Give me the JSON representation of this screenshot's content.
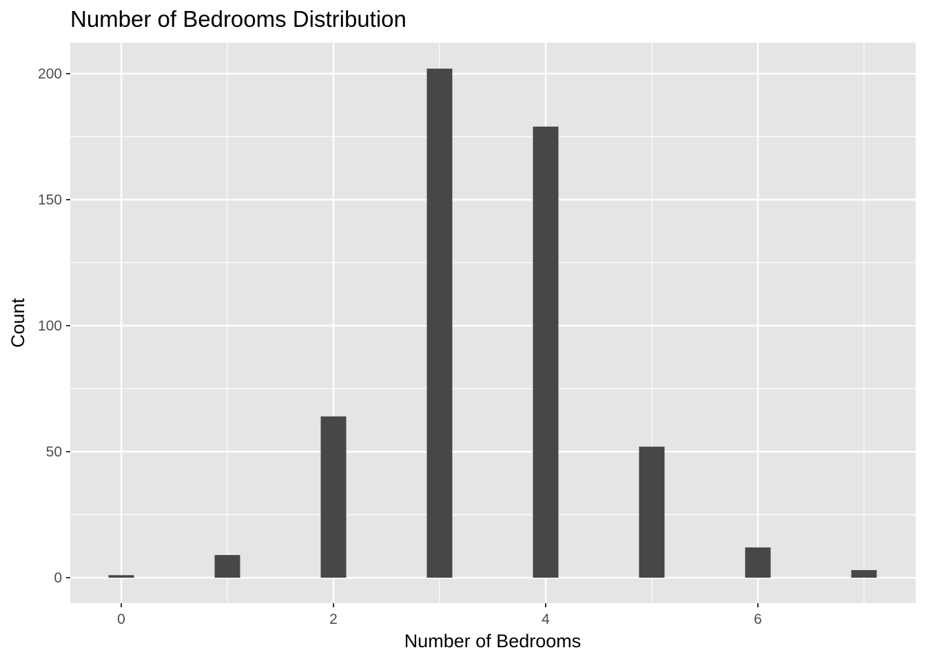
{
  "chart_data": {
    "type": "bar",
    "title": "Number of Bedrooms Distribution",
    "xlabel": "Number of Bedrooms",
    "ylabel": "Count",
    "x": [
      0,
      1,
      2,
      3,
      4,
      5,
      6,
      7
    ],
    "values": [
      1,
      9,
      64,
      202,
      179,
      52,
      12,
      3
    ],
    "xlim": [
      -0.5,
      7.5
    ],
    "ylim": [
      -10,
      212
    ],
    "x_ticks": [
      0,
      2,
      4,
      6
    ],
    "y_ticks": [
      0,
      50,
      100,
      150,
      200
    ],
    "grid": true,
    "colors": {
      "panel_background": "#e5e5e5",
      "grid": "#ffffff",
      "bar": "#474747",
      "tick_text": "#4d4d4d",
      "tick_mark": "#333333"
    }
  }
}
